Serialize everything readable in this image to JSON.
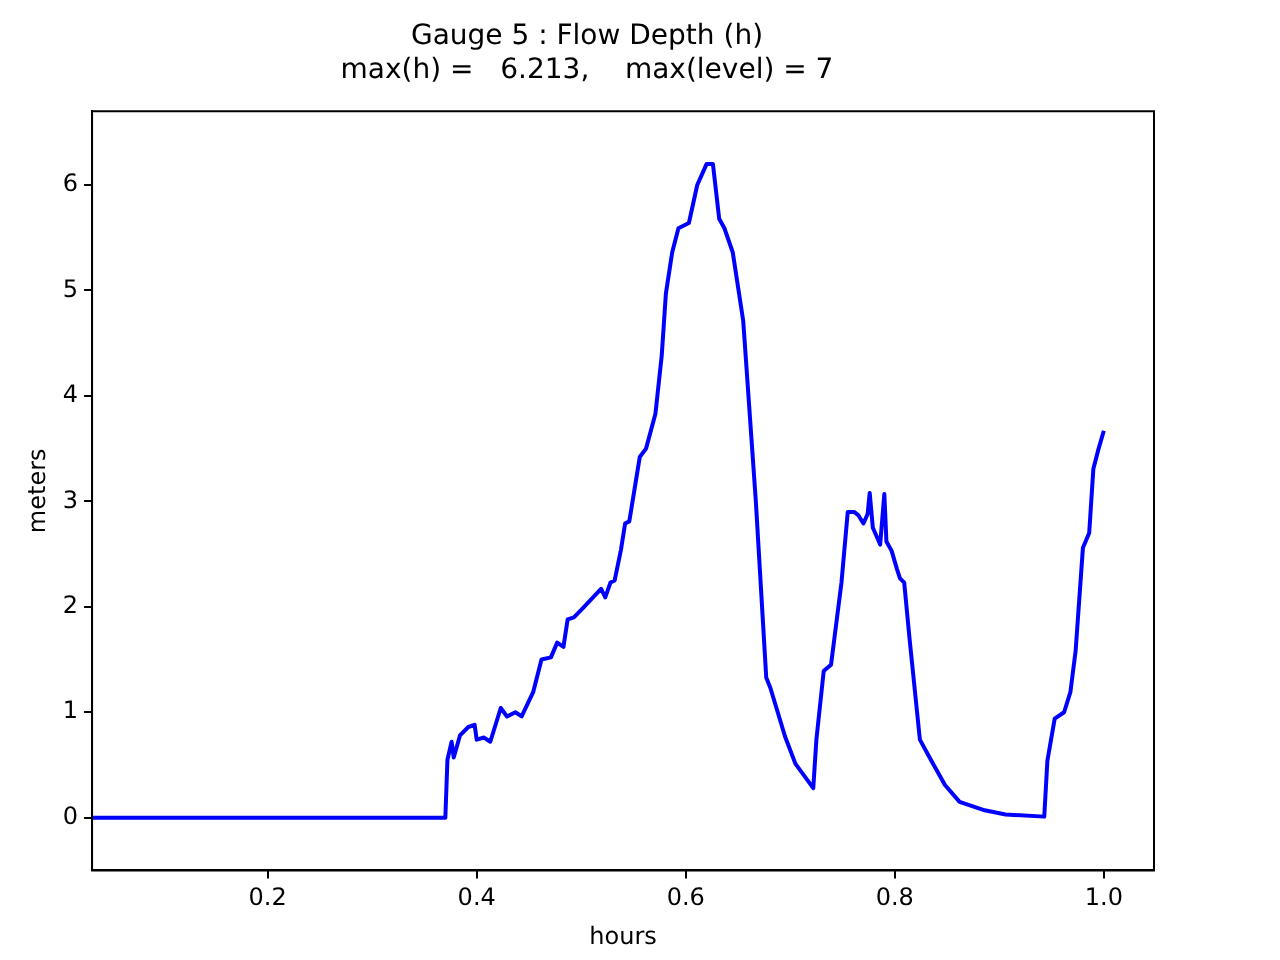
{
  "chart_data": {
    "type": "line",
    "title": "Gauge 5 : Flow Depth (h)",
    "subtitle": "max(h) =   6.213,    max(level) = 7",
    "xlabel": "hours",
    "ylabel": "meters",
    "x": [
      0.032,
      0.37,
      0.372,
      0.376,
      0.378,
      0.384,
      0.392,
      0.398,
      0.4,
      0.407,
      0.413,
      0.423,
      0.429,
      0.437,
      0.443,
      0.454,
      0.462,
      0.471,
      0.477,
      0.483,
      0.487,
      0.493,
      0.5,
      0.519,
      0.523,
      0.528,
      0.532,
      0.538,
      0.542,
      0.546,
      0.556,
      0.562,
      0.571,
      0.577,
      0.581,
      0.587,
      0.593,
      0.603,
      0.611,
      0.62,
      0.626,
      0.632,
      0.637,
      0.645,
      0.655,
      0.667,
      0.677,
      0.681,
      0.695,
      0.705,
      0.722,
      0.725,
      0.732,
      0.739,
      0.749,
      0.755,
      0.761,
      0.765,
      0.77,
      0.774,
      0.776,
      0.779,
      0.783,
      0.786,
      0.79,
      0.792,
      0.797,
      0.802,
      0.805,
      0.809,
      0.814,
      0.824,
      0.835,
      0.848,
      0.862,
      0.886,
      0.906,
      0.943,
      0.946,
      0.953,
      0.962,
      0.968,
      0.973,
      0.98,
      0.986,
      0.99,
      0.995,
      1.0
    ],
    "series": [
      {
        "color": "#0000ff",
        "values": [
          0,
          0,
          0.55,
          0.72,
          0.57,
          0.78,
          0.86,
          0.88,
          0.74,
          0.76,
          0.72,
          1.04,
          0.96,
          1.0,
          0.96,
          1.19,
          1.5,
          1.52,
          1.66,
          1.62,
          1.88,
          1.9,
          1.97,
          2.17,
          2.09,
          2.23,
          2.25,
          2.54,
          2.79,
          2.81,
          3.42,
          3.5,
          3.83,
          4.38,
          4.97,
          5.36,
          5.59,
          5.64,
          6.0,
          6.2,
          6.2,
          5.68,
          5.59,
          5.36,
          4.71,
          3.01,
          1.33,
          1.23,
          0.77,
          0.51,
          0.28,
          0.74,
          1.39,
          1.45,
          2.23,
          2.9,
          2.9,
          2.87,
          2.79,
          2.88,
          3.08,
          2.75,
          2.66,
          2.59,
          3.07,
          2.62,
          2.53,
          2.36,
          2.27,
          2.23,
          1.71,
          0.74,
          0.54,
          0.31,
          0.15,
          0.07,
          0.03,
          0.01,
          0.54,
          0.94,
          1.0,
          1.19,
          1.58,
          2.56,
          2.7,
          3.31,
          3.5,
          3.67
        ]
      }
    ],
    "xlim": [
      0.032,
      1.048
    ],
    "ylim": [
      -0.5,
      6.7
    ],
    "xticks": [
      0.2,
      0.4,
      0.6,
      0.8,
      {
        "value": 1,
        "label": "1.0"
      }
    ],
    "yticks": [
      0,
      1,
      2,
      3,
      4,
      5,
      6
    ],
    "grid": false,
    "legend": false,
    "marker": "none",
    "line_style": "solid"
  }
}
